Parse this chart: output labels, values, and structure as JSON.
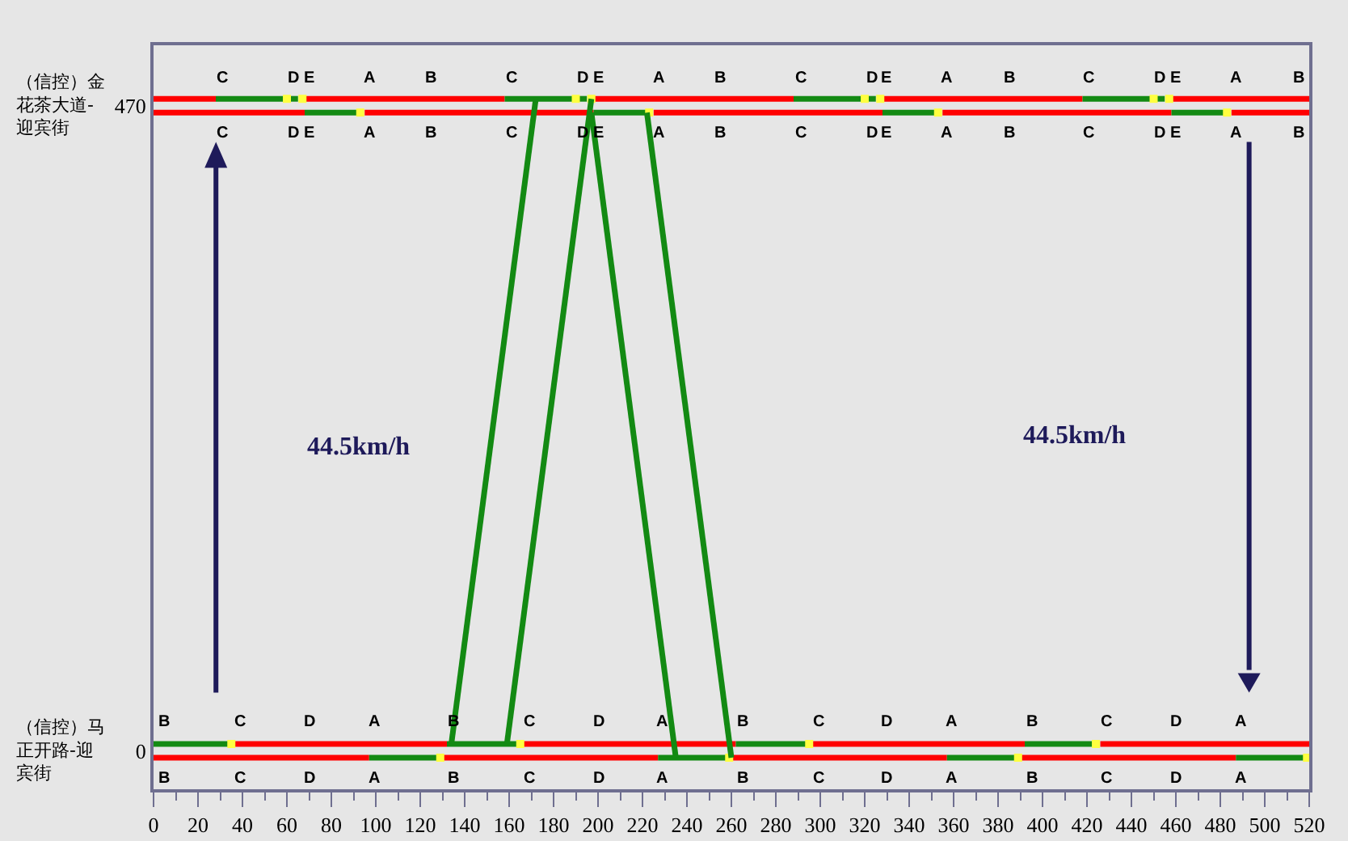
{
  "chart_data": {
    "type": "line",
    "grid": false,
    "line_style": "solid",
    "xlim": [
      0,
      520
    ],
    "ylim": [
      -28,
      514
    ],
    "xticks": [
      0,
      {
        "value": 10,
        "label": null
      },
      20,
      {
        "value": 30,
        "label": null
      },
      40,
      {
        "value": 50,
        "label": null
      },
      60,
      {
        "value": 70,
        "label": null
      },
      80,
      {
        "value": 90,
        "label": null
      },
      100,
      {
        "value": 110,
        "label": null
      },
      120,
      {
        "value": 130,
        "label": null
      },
      140,
      {
        "value": 150,
        "label": null
      },
      160,
      {
        "value": 170,
        "label": null
      },
      180,
      {
        "value": 190,
        "label": null
      },
      200,
      {
        "value": 210,
        "label": null
      },
      220,
      {
        "value": 230,
        "label": null
      },
      240,
      {
        "value": 250,
        "label": null
      },
      260,
      {
        "value": 270,
        "label": null
      },
      280,
      {
        "value": 290,
        "label": null
      },
      300,
      {
        "value": 310,
        "label": null
      },
      320,
      {
        "value": 330,
        "label": null
      },
      340,
      {
        "value": 350,
        "label": null
      },
      360,
      {
        "value": 370,
        "label": null
      },
      380,
      {
        "value": 390,
        "label": null
      },
      400,
      {
        "value": 410,
        "label": null
      },
      420,
      {
        "value": 430,
        "label": null
      },
      440,
      {
        "value": 450,
        "label": null
      },
      460,
      {
        "value": 470,
        "label": null
      },
      480,
      {
        "value": 490,
        "label": null
      },
      500,
      {
        "value": 510,
        "label": null
      },
      520
    ],
    "yticks": [
      0,
      470
    ],
    "series": [
      {
        "color": "#ff0000",
        "x": [
          0,
          28,
          null,
          68,
          158,
          null,
          198,
          288,
          null,
          328,
          418,
          null,
          458,
          520
        ],
        "values": [
          475,
          475,
          null,
          475,
          475,
          null,
          475,
          475,
          null,
          475,
          475,
          null,
          475,
          475
        ]
      },
      {
        "color": "#138a13",
        "x": [
          28,
          59,
          null,
          61,
          65,
          null,
          158,
          189,
          null,
          191,
          195,
          null,
          288,
          319,
          null,
          321,
          325,
          null,
          418,
          449,
          null,
          451,
          455
        ],
        "values": [
          475,
          475,
          null,
          475,
          475,
          null,
          475,
          475,
          null,
          475,
          475,
          null,
          475,
          475,
          null,
          475,
          475,
          null,
          475,
          475,
          null,
          475,
          475
        ]
      },
      {
        "type": "scatter",
        "marker": "square",
        "color": "#ffff40",
        "x": [
          60,
          67,
          190,
          197,
          320,
          327,
          450,
          457
        ],
        "values": [
          475,
          475,
          475,
          475,
          475,
          475,
          475,
          475
        ]
      },
      {
        "color": "#ff0000",
        "x": [
          0,
          68,
          null,
          95,
          198,
          null,
          225,
          328,
          null,
          355,
          458,
          null,
          485,
          520
        ],
        "values": [
          465,
          465,
          null,
          465,
          465,
          null,
          465,
          465,
          null,
          465,
          465,
          null,
          465,
          465
        ]
      },
      {
        "color": "#138a13",
        "x": [
          68,
          92,
          null,
          198,
          222,
          null,
          328,
          352,
          null,
          458,
          482
        ],
        "values": [
          465,
          465,
          null,
          465,
          465,
          null,
          465,
          465,
          null,
          465,
          465
        ]
      },
      {
        "type": "scatter",
        "marker": "square",
        "color": "#ffff40",
        "x": [
          93,
          223,
          353,
          483
        ],
        "values": [
          465,
          465,
          465,
          465
        ]
      },
      {
        "color": "#ff0000",
        "x": [
          36,
          132,
          null,
          166,
          262,
          null,
          296,
          392,
          null,
          426,
          520
        ],
        "values": [
          5,
          5,
          null,
          5,
          5,
          null,
          5,
          5,
          null,
          5,
          5
        ]
      },
      {
        "color": "#138a13",
        "x": [
          0,
          34,
          null,
          132,
          164,
          null,
          262,
          294,
          null,
          392,
          423
        ],
        "values": [
          5,
          5,
          null,
          5,
          5,
          null,
          5,
          5,
          null,
          5,
          5
        ]
      },
      {
        "type": "scatter",
        "marker": "square",
        "color": "#ffff40",
        "x": [
          35,
          165,
          295,
          424
        ],
        "values": [
          5,
          5,
          5,
          5
        ]
      },
      {
        "color": "#ff0000",
        "x": [
          0,
          97,
          null,
          130,
          227,
          null,
          260,
          357,
          null,
          390,
          487
        ],
        "values": [
          -5,
          -5,
          null,
          -5,
          -5,
          null,
          -5,
          -5,
          null,
          -5,
          -5
        ]
      },
      {
        "color": "#138a13",
        "x": [
          97,
          128,
          null,
          227,
          258,
          null,
          357,
          388,
          null,
          487,
          518
        ],
        "values": [
          -5,
          -5,
          null,
          -5,
          -5,
          null,
          -5,
          -5,
          null,
          -5,
          -5
        ]
      },
      {
        "type": "scatter",
        "marker": "square",
        "color": "#ffff40",
        "x": [
          129,
          259,
          389,
          519
        ],
        "values": [
          -5,
          -5,
          -5,
          -5
        ]
      },
      {
        "color": "#138a13",
        "x": [
          134,
          172
        ],
        "values": [
          5,
          475
        ]
      },
      {
        "color": "#138a13",
        "x": [
          159,
          197
        ],
        "values": [
          5,
          475
        ]
      },
      {
        "color": "#138a13",
        "x": [
          197,
          235
        ],
        "values": [
          465,
          -5
        ]
      },
      {
        "color": "#138a13",
        "x": [
          222,
          260
        ],
        "values": [
          465,
          -5
        ]
      }
    ],
    "annotations": [
      "（信控）金花茶大道-迎宾街",
      "（信控）马正开路-迎宾街",
      "44.5km/h",
      "44.5km/h",
      {
        "text": "C",
        "x": 31,
        "y": 475
      },
      {
        "text": "D",
        "x": 63,
        "y": 475
      },
      {
        "text": "E",
        "x": 70,
        "y": 475
      },
      {
        "text": "A",
        "x": 97,
        "y": 475
      },
      {
        "text": "B",
        "x": 125,
        "y": 475
      },
      {
        "text": "C",
        "x": 161,
        "y": 475
      },
      {
        "text": "D",
        "x": 193,
        "y": 475
      },
      {
        "text": "E",
        "x": 200,
        "y": 475
      },
      {
        "text": "A",
        "x": 227,
        "y": 475
      },
      {
        "text": "B",
        "x": 255,
        "y": 475
      },
      {
        "text": "C",
        "x": 291,
        "y": 475
      },
      {
        "text": "D",
        "x": 323,
        "y": 475
      },
      {
        "text": "E",
        "x": 330,
        "y": 475
      },
      {
        "text": "A",
        "x": 357,
        "y": 475
      },
      {
        "text": "B",
        "x": 385,
        "y": 475
      },
      {
        "text": "C",
        "x": 421,
        "y": 475
      },
      {
        "text": "D",
        "x": 453,
        "y": 475
      },
      {
        "text": "E",
        "x": 460,
        "y": 475
      },
      {
        "text": "A",
        "x": 487,
        "y": 475
      },
      {
        "text": "B",
        "x": 515,
        "y": 475
      },
      {
        "text": "C",
        "x": 31,
        "y": 465
      },
      {
        "text": "D",
        "x": 63,
        "y": 465
      },
      {
        "text": "E",
        "x": 70,
        "y": 465
      },
      {
        "text": "A",
        "x": 97,
        "y": 465
      },
      {
        "text": "B",
        "x": 125,
        "y": 465
      },
      {
        "text": "C",
        "x": 161,
        "y": 465
      },
      {
        "text": "D",
        "x": 193,
        "y": 465
      },
      {
        "text": "E",
        "x": 200,
        "y": 465
      },
      {
        "text": "A",
        "x": 227,
        "y": 465
      },
      {
        "text": "B",
        "x": 255,
        "y": 465
      },
      {
        "text": "C",
        "x": 291,
        "y": 465
      },
      {
        "text": "D",
        "x": 323,
        "y": 465
      },
      {
        "text": "E",
        "x": 330,
        "y": 465
      },
      {
        "text": "A",
        "x": 357,
        "y": 465
      },
      {
        "text": "B",
        "x": 385,
        "y": 465
      },
      {
        "text": "C",
        "x": 421,
        "y": 465
      },
      {
        "text": "D",
        "x": 453,
        "y": 465
      },
      {
        "text": "E",
        "x": 460,
        "y": 465
      },
      {
        "text": "A",
        "x": 487,
        "y": 465
      },
      {
        "text": "B",
        "x": 515,
        "y": 465
      },
      {
        "text": "B",
        "x": 5,
        "y": 5
      },
      {
        "text": "C",
        "x": 39,
        "y": 5
      },
      {
        "text": "D",
        "x": 70,
        "y": 5
      },
      {
        "text": "A",
        "x": 99,
        "y": 5
      },
      {
        "text": "B",
        "x": 135,
        "y": 5
      },
      {
        "text": "C",
        "x": 169,
        "y": 5
      },
      {
        "text": "D",
        "x": 200,
        "y": 5
      },
      {
        "text": "A",
        "x": 229,
        "y": 5
      },
      {
        "text": "B",
        "x": 265,
        "y": 5
      },
      {
        "text": "C",
        "x": 299,
        "y": 5
      },
      {
        "text": "D",
        "x": 330,
        "y": 5
      },
      {
        "text": "A",
        "x": 359,
        "y": 5
      },
      {
        "text": "B",
        "x": 395,
        "y": 5
      },
      {
        "text": "C",
        "x": 429,
        "y": 5
      },
      {
        "text": "D",
        "x": 460,
        "y": 5
      },
      {
        "text": "A",
        "x": 489,
        "y": 5
      },
      {
        "text": "B",
        "x": 5,
        "y": -5
      },
      {
        "text": "C",
        "x": 39,
        "y": -5
      },
      {
        "text": "D",
        "x": 70,
        "y": -5
      },
      {
        "text": "A",
        "x": 99,
        "y": -5
      },
      {
        "text": "B",
        "x": 135,
        "y": -5
      },
      {
        "text": "C",
        "x": 169,
        "y": -5
      },
      {
        "text": "D",
        "x": 200,
        "y": -5
      },
      {
        "text": "A",
        "x": 229,
        "y": -5
      },
      {
        "text": "B",
        "x": 265,
        "y": -5
      },
      {
        "text": "C",
        "x": 299,
        "y": -5
      },
      {
        "text": "D",
        "x": 330,
        "y": -5
      },
      {
        "text": "A",
        "x": 359,
        "y": -5
      },
      {
        "text": "B",
        "x": 395,
        "y": -5
      },
      {
        "text": "C",
        "x": 429,
        "y": -5
      },
      {
        "text": "D",
        "x": 460,
        "y": -5
      },
      {
        "text": "A",
        "x": 489,
        "y": -5
      }
    ]
  }
}
